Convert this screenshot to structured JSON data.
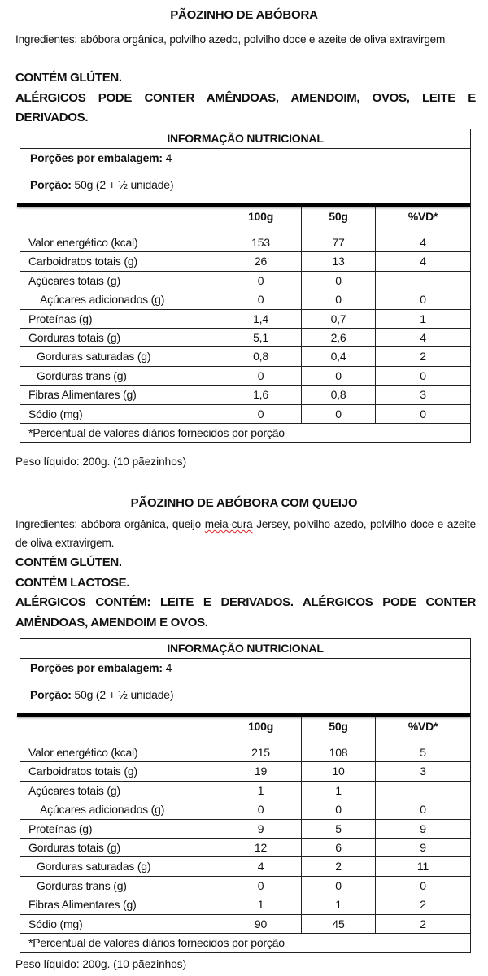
{
  "products": [
    {
      "title": "PÃOZINHO DE ABÓBORA",
      "ingredients_pre": "Ingredientes: abóbora orgânica, polvilho azedo, polvilho doce e azeite de oliva extravirgem",
      "ingredients_spell": "",
      "ingredients_post": "",
      "warnings": [
        "CONTÉM GLÚTEN.",
        "ALÉRGICOS PODE CONTER AMÊNDOAS, AMENDOIM, OVOS, LEITE E DERIVADOS."
      ],
      "table": {
        "title": "INFORMAÇÃO NUTRICIONAL",
        "servings_label": "Porções por embalagem:",
        "servings_value": " 4",
        "portion_label": "Porção:",
        "portion_value": " 50g (2 + ½ unidade)",
        "columns": [
          "",
          "100g",
          "50g",
          "%VD*"
        ],
        "rows": [
          [
            "Valor energético (kcal)",
            "153",
            "77",
            "4"
          ],
          [
            "Carboidratos totais (g)",
            "26",
            "13",
            "4"
          ],
          [
            "Açúcares totais (g)",
            "0",
            "0",
            ""
          ],
          [
            "Açúcares adicionados (g)",
            "0",
            "0",
            "0"
          ],
          [
            "Proteínas (g)",
            "1,4",
            "0,7",
            "1"
          ],
          [
            "Gorduras totais (g)",
            "5,1",
            "2,6",
            "4"
          ],
          [
            "Gorduras saturadas (g)",
            "0,8",
            "0,4",
            "2"
          ],
          [
            "Gorduras trans (g)",
            "0",
            "0",
            "0"
          ],
          [
            "Fibras Alimentares (g)",
            "1,6",
            "0,8",
            "3"
          ],
          [
            "Sódio (mg)",
            "0",
            "0",
            "0"
          ]
        ],
        "footnote": "*Percentual de valores diários fornecidos por porção"
      },
      "net_weight": "Peso líquido: 200g. (10 pãezinhos)"
    },
    {
      "title": "PÃOZINHO DE ABÓBORA COM QUEIJO",
      "ingredients_pre": "Ingredientes: abóbora orgânica, queijo ",
      "ingredients_spell": "meia-cura",
      "ingredients_post": " Jersey, polvilho azedo, polvilho doce e azeite de oliva extravirgem.",
      "warnings": [
        "CONTÉM GLÚTEN.",
        "CONTÉM LACTOSE.",
        "ALÉRGICOS CONTÉM: LEITE E DERIVADOS. ALÉRGICOS PODE CONTER AMÊNDOAS, AMENDOIM E OVOS."
      ],
      "table": {
        "title": "INFORMAÇÃO NUTRICIONAL",
        "servings_label": "Porções por embalagem:",
        "servings_value": " 4",
        "portion_label": "Porção:",
        "portion_value": " 50g (2 + ½ unidade)",
        "columns": [
          "",
          "100g",
          "50g",
          "%VD*"
        ],
        "rows": [
          [
            "Valor energético (kcal)",
            "215",
            "108",
            "5"
          ],
          [
            "Carboidratos totais (g)",
            "19",
            "10",
            "3"
          ],
          [
            "Açúcares totais (g)",
            "1",
            "1",
            ""
          ],
          [
            "Açúcares adicionados (g)",
            "0",
            "0",
            "0"
          ],
          [
            "Proteínas (g)",
            "9",
            "5",
            "9"
          ],
          [
            "Gorduras totais (g)",
            "12",
            "6",
            "9"
          ],
          [
            "Gorduras saturadas (g)",
            "4",
            "2",
            "11"
          ],
          [
            "Gorduras trans (g)",
            "0",
            "0",
            "0"
          ],
          [
            "Fibras Alimentares (g)",
            "1",
            "1",
            "2"
          ],
          [
            "Sódio (mg)",
            "90",
            "45",
            "2"
          ]
        ],
        "footnote": "*Percentual de valores diários fornecidos por porção"
      },
      "net_weight": "Peso líquido: 200g. (10 pãezinhos)"
    }
  ]
}
